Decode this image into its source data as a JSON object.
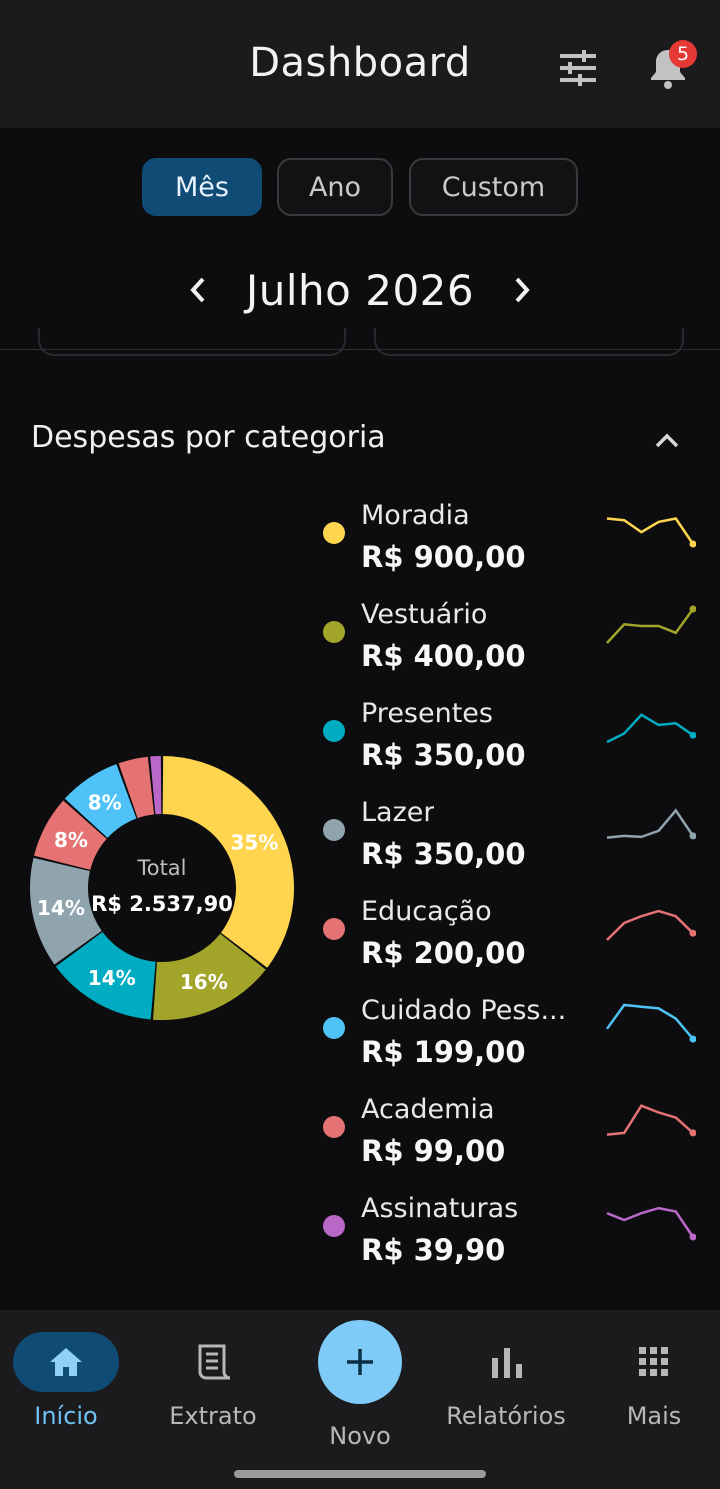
{
  "header": {
    "title": "Dashboard",
    "notification_count": "5"
  },
  "period_tabs": [
    {
      "label": "Mês",
      "active": true
    },
    {
      "label": "Ano",
      "active": false
    },
    {
      "label": "Custom",
      "active": false
    }
  ],
  "period": {
    "label": "Julho 2026"
  },
  "section": {
    "title": "Despesas por categoria"
  },
  "chart_data": {
    "type": "pie",
    "center_label": "Total",
    "center_value": "R$ 2.537,90",
    "categories": [
      "Moradia",
      "Vestuário",
      "Presentes",
      "Lazer",
      "Educação",
      "Cuidado Pessoal",
      "Academia",
      "Assinaturas"
    ],
    "values": [
      900.0,
      400.0,
      350.0,
      350.0,
      200.0,
      199.0,
      99.0,
      39.9
    ],
    "percent_labels": [
      "35%",
      "16%",
      "14%",
      "14%",
      "8%",
      "8%",
      "",
      ""
    ],
    "colors": [
      "#ffd54f",
      "#a3a52a",
      "#00acc1",
      "#90a4ae",
      "#e57373",
      "#4fc3f7",
      "#e57373",
      "#ba68c8"
    ]
  },
  "legend": [
    {
      "name": "Moradia",
      "value": "R$ 900,00",
      "color": "#ffd54f",
      "trend": [
        0.75,
        0.7,
        0.35,
        0.65,
        0.75,
        0.0
      ]
    },
    {
      "name": "Vestuário",
      "value": "R$ 400,00",
      "color": "#a3a52a",
      "trend": [
        0.0,
        0.55,
        0.5,
        0.5,
        0.3,
        1.0
      ]
    },
    {
      "name": "Presentes",
      "value": "R$ 350,00",
      "color": "#00acc1",
      "trend": [
        0.0,
        0.25,
        0.8,
        0.5,
        0.55,
        0.2
      ]
    },
    {
      "name": "Lazer",
      "value": "R$ 350,00",
      "color": "#90a4ae",
      "trend": [
        0.1,
        0.15,
        0.12,
        0.3,
        0.9,
        0.15
      ]
    },
    {
      "name": "Educação",
      "value": "R$ 200,00",
      "color": "#e57373",
      "trend": [
        0.0,
        0.5,
        0.7,
        0.85,
        0.7,
        0.2
      ]
    },
    {
      "name": "Cuidado Pess...",
      "value": "R$ 199,00",
      "color": "#4fc3f7",
      "trend": [
        0.3,
        1.0,
        0.95,
        0.9,
        0.6,
        0.0
      ]
    },
    {
      "name": "Academia",
      "value": "R$ 99,00",
      "color": "#e57373",
      "trend": [
        0.1,
        0.15,
        0.95,
        0.75,
        0.6,
        0.15
      ]
    },
    {
      "name": "Assinaturas",
      "value": "R$ 39,90",
      "color": "#ba68c8",
      "trend": [
        0.7,
        0.5,
        0.7,
        0.85,
        0.75,
        0.0
      ]
    }
  ],
  "nav": [
    {
      "label": "Início",
      "icon": "home-icon",
      "active": true
    },
    {
      "label": "Extrato",
      "icon": "receipt-icon",
      "active": false
    },
    {
      "label": "Novo",
      "icon": "plus-icon",
      "active": false
    },
    {
      "label": "Relatórios",
      "icon": "bar-chart-icon",
      "active": false
    },
    {
      "label": "Mais",
      "icon": "grid-icon",
      "active": false
    }
  ],
  "colors": {
    "accent": "#0f4b74",
    "accent_text": "#6fc1f3",
    "fab": "#7fcbf7",
    "badge": "#e53935"
  }
}
